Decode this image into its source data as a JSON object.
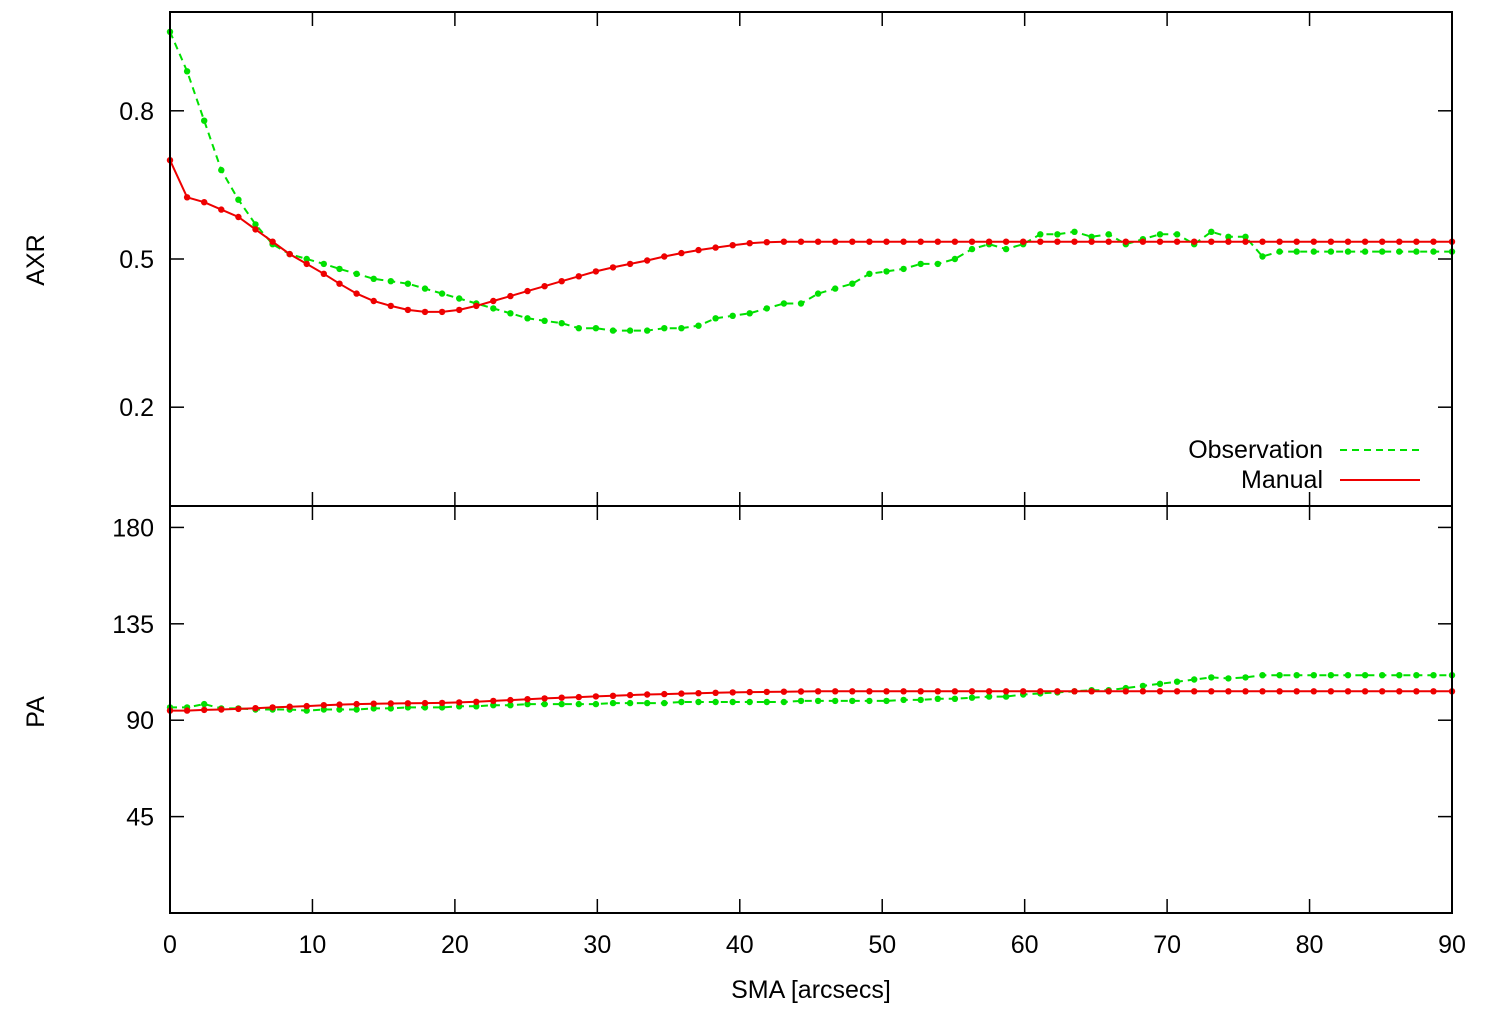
{
  "chart_data": [
    {
      "type": "line",
      "ylabel": "AXR",
      "xlabel": "",
      "xlim": [
        0,
        90
      ],
      "ylim": [
        0.0,
        1.0
      ],
      "yticks": [
        "0.2",
        "0.5",
        "0.8"
      ],
      "ytick_values": [
        0.2,
        0.5,
        0.8
      ],
      "legend_position": "bottom-right",
      "series": [
        {
          "name": "Observation",
          "color": "#00e000",
          "style": "dashed",
          "x": [
            0.0,
            1.2,
            2.4,
            3.6,
            4.8,
            6.0,
            7.2,
            8.4,
            9.6,
            10.8,
            11.9,
            13.1,
            14.3,
            15.5,
            16.7,
            17.9,
            19.1,
            20.3,
            21.5,
            22.7,
            23.9,
            25.1,
            26.3,
            27.5,
            28.7,
            29.9,
            31.1,
            32.3,
            33.5,
            34.7,
            35.9,
            37.1,
            38.3,
            39.5,
            40.7,
            41.9,
            43.1,
            44.3,
            45.5,
            46.7,
            47.9,
            49.1,
            50.3,
            51.5,
            52.7,
            53.9,
            55.1,
            56.3,
            57.5,
            58.7,
            59.9,
            61.1,
            62.3,
            63.5,
            64.7,
            65.9,
            67.1,
            68.3,
            69.5,
            70.7,
            71.9,
            73.1,
            74.3,
            75.5,
            76.7,
            77.9,
            79.1,
            80.3,
            81.5,
            82.7,
            83.9,
            85.1,
            86.3,
            87.5,
            88.7,
            90.0
          ],
          "values": [
            0.96,
            0.88,
            0.78,
            0.68,
            0.62,
            0.57,
            0.53,
            0.51,
            0.5,
            0.49,
            0.48,
            0.47,
            0.46,
            0.455,
            0.45,
            0.44,
            0.43,
            0.42,
            0.41,
            0.4,
            0.39,
            0.38,
            0.375,
            0.37,
            0.36,
            0.36,
            0.355,
            0.355,
            0.355,
            0.36,
            0.36,
            0.365,
            0.38,
            0.385,
            0.39,
            0.4,
            0.41,
            0.41,
            0.43,
            0.44,
            0.45,
            0.47,
            0.475,
            0.48,
            0.49,
            0.49,
            0.5,
            0.52,
            0.53,
            0.52,
            0.53,
            0.55,
            0.55,
            0.555,
            0.545,
            0.55,
            0.53,
            0.54,
            0.55,
            0.55,
            0.53,
            0.555,
            0.545,
            0.545,
            0.505,
            0.515,
            0.515,
            0.515,
            0.515,
            0.515,
            0.515,
            0.515,
            0.515,
            0.515,
            0.515,
            0.515
          ]
        },
        {
          "name": "Manual",
          "color": "#ee0000",
          "style": "solid",
          "x": [
            0.0,
            1.2,
            2.4,
            3.6,
            4.8,
            6.0,
            7.2,
            8.4,
            9.6,
            10.8,
            11.9,
            13.1,
            14.3,
            15.5,
            16.7,
            17.9,
            19.1,
            20.3,
            21.5,
            22.7,
            23.9,
            25.1,
            26.3,
            27.5,
            28.7,
            29.9,
            31.1,
            32.3,
            33.5,
            34.7,
            35.9,
            37.1,
            38.3,
            39.5,
            40.7,
            41.9,
            43.1,
            44.3,
            45.5,
            46.7,
            47.9,
            49.1,
            50.3,
            51.5,
            52.7,
            53.9,
            55.1,
            56.3,
            57.5,
            58.7,
            59.9,
            61.1,
            62.3,
            63.5,
            64.7,
            65.9,
            67.1,
            68.3,
            69.5,
            70.7,
            71.9,
            73.1,
            74.3,
            75.5,
            76.7,
            77.9,
            79.1,
            80.3,
            81.5,
            82.7,
            83.9,
            85.1,
            86.3,
            87.5,
            88.7,
            90.0
          ],
          "values": [
            0.7,
            0.625,
            0.615,
            0.6,
            0.585,
            0.56,
            0.535,
            0.51,
            0.49,
            0.47,
            0.45,
            0.43,
            0.415,
            0.405,
            0.397,
            0.393,
            0.393,
            0.397,
            0.405,
            0.415,
            0.425,
            0.435,
            0.445,
            0.455,
            0.465,
            0.475,
            0.483,
            0.49,
            0.497,
            0.505,
            0.512,
            0.518,
            0.523,
            0.528,
            0.532,
            0.534,
            0.535,
            0.535,
            0.535,
            0.535,
            0.535,
            0.535,
            0.535,
            0.535,
            0.535,
            0.535,
            0.535,
            0.535,
            0.535,
            0.535,
            0.535,
            0.535,
            0.535,
            0.535,
            0.535,
            0.535,
            0.535,
            0.535,
            0.535,
            0.535,
            0.535,
            0.535,
            0.535,
            0.535,
            0.535,
            0.535,
            0.535,
            0.535,
            0.535,
            0.535,
            0.535,
            0.535,
            0.535,
            0.535,
            0.535,
            0.535
          ]
        }
      ]
    },
    {
      "type": "line",
      "ylabel": "PA",
      "xlabel": "SMA [arcsecs]",
      "xlim": [
        0,
        90
      ],
      "ylim": [
        0,
        190
      ],
      "yticks": [
        "45",
        "90",
        "135",
        "180"
      ],
      "ytick_values": [
        45,
        90,
        135,
        180
      ],
      "xticks": [
        "0",
        "10",
        "20",
        "30",
        "40",
        "50",
        "60",
        "70",
        "80",
        "90"
      ],
      "xtick_values": [
        0,
        10,
        20,
        30,
        40,
        50,
        60,
        70,
        80,
        90
      ],
      "series": [
        {
          "name": "Observation",
          "color": "#00e000",
          "style": "dashed",
          "x": [
            0.0,
            1.2,
            2.4,
            3.6,
            4.8,
            6.0,
            7.2,
            8.4,
            9.6,
            10.8,
            11.9,
            13.1,
            14.3,
            15.5,
            16.7,
            17.9,
            19.1,
            20.3,
            21.5,
            22.7,
            23.9,
            25.1,
            26.3,
            27.5,
            28.7,
            29.9,
            31.1,
            32.3,
            33.5,
            34.7,
            35.9,
            37.1,
            38.3,
            39.5,
            40.7,
            41.9,
            43.1,
            44.3,
            45.5,
            46.7,
            47.9,
            49.1,
            50.3,
            51.5,
            52.7,
            53.9,
            55.1,
            56.3,
            57.5,
            58.7,
            59.9,
            61.1,
            62.3,
            63.5,
            64.7,
            65.9,
            67.1,
            68.3,
            69.5,
            70.7,
            71.9,
            73.1,
            74.3,
            75.5,
            76.7,
            77.9,
            79.1,
            80.3,
            81.5,
            82.7,
            83.9,
            85.1,
            86.3,
            87.5,
            88.7,
            90.0
          ],
          "values": [
            96,
            96,
            97.5,
            95.5,
            95.5,
            95,
            95,
            95,
            94.5,
            95,
            95,
            95,
            95.5,
            95.5,
            96,
            96,
            96,
            96.5,
            96.5,
            97,
            97,
            97.5,
            97.5,
            97.5,
            97.5,
            97.5,
            98,
            98,
            98,
            98,
            98.5,
            98.5,
            98.5,
            98.5,
            98.5,
            98.5,
            98.5,
            99,
            99,
            99,
            99,
            99,
            99,
            99.5,
            99.5,
            100,
            100,
            100.5,
            101,
            101,
            102,
            102.5,
            103,
            103.5,
            104,
            104,
            105,
            106,
            107,
            108,
            109,
            110,
            109.5,
            110,
            111,
            111,
            111,
            111,
            111,
            111,
            111,
            111,
            111,
            111,
            111,
            111
          ]
        },
        {
          "name": "Manual",
          "color": "#ee0000",
          "style": "solid",
          "x": [
            0.0,
            1.2,
            2.4,
            3.6,
            4.8,
            6.0,
            7.2,
            8.4,
            9.6,
            10.8,
            11.9,
            13.1,
            14.3,
            15.5,
            16.7,
            17.9,
            19.1,
            20.3,
            21.5,
            22.7,
            23.9,
            25.1,
            26.3,
            27.5,
            28.7,
            29.9,
            31.1,
            32.3,
            33.5,
            34.7,
            35.9,
            37.1,
            38.3,
            39.5,
            40.7,
            41.9,
            43.1,
            44.3,
            45.5,
            46.7,
            47.9,
            49.1,
            50.3,
            51.5,
            52.7,
            53.9,
            55.1,
            56.3,
            57.5,
            58.7,
            59.9,
            61.1,
            62.3,
            63.5,
            64.7,
            65.9,
            67.1,
            68.3,
            69.5,
            70.7,
            71.9,
            73.1,
            74.3,
            75.5,
            76.7,
            77.9,
            79.1,
            80.3,
            81.5,
            82.7,
            83.9,
            85.1,
            86.3,
            87.5,
            88.7,
            90.0
          ],
          "values": [
            94.5,
            94.5,
            94.8,
            95,
            95.3,
            95.6,
            96,
            96.3,
            96.6,
            97,
            97.3,
            97.5,
            97.7,
            97.8,
            97.9,
            98,
            98.1,
            98.3,
            98.6,
            99,
            99.4,
            99.8,
            100.2,
            100.5,
            100.8,
            101.1,
            101.4,
            101.7,
            102,
            102.2,
            102.4,
            102.6,
            102.8,
            103,
            103.1,
            103.2,
            103.3,
            103.4,
            103.5,
            103.5,
            103.5,
            103.5,
            103.5,
            103.5,
            103.5,
            103.5,
            103.5,
            103.5,
            103.5,
            103.5,
            103.5,
            103.5,
            103.5,
            103.5,
            103.5,
            103.5,
            103.5,
            103.5,
            103.5,
            103.5,
            103.5,
            103.5,
            103.5,
            103.5,
            103.5,
            103.5,
            103.5,
            103.5,
            103.5,
            103.5,
            103.5,
            103.5,
            103.5,
            103.5,
            103.5,
            103.5
          ]
        }
      ]
    }
  ]
}
